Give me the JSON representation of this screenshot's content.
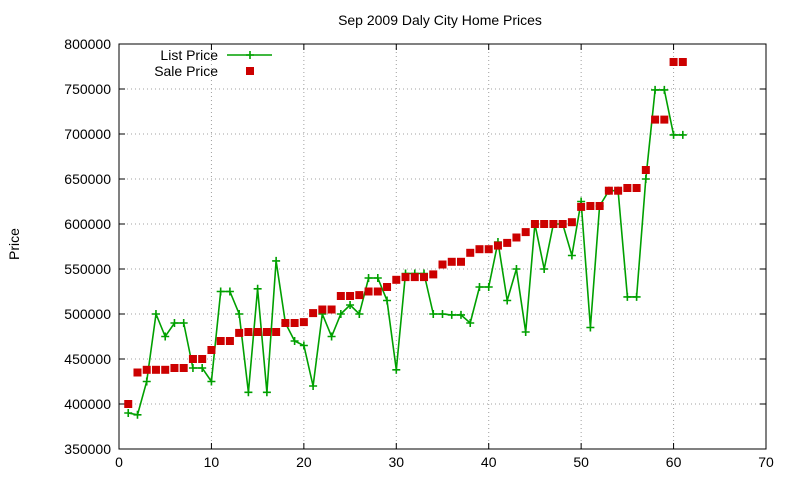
{
  "chart_data": {
    "type": "line",
    "title": "Sep 2009 Daly City Home Prices",
    "xlabel": "",
    "ylabel": "Price",
    "xlim": [
      0,
      70
    ],
    "ylim": [
      350000,
      800000
    ],
    "x_ticks": [
      0,
      10,
      20,
      30,
      40,
      50,
      60,
      70
    ],
    "y_ticks": [
      350000,
      400000,
      450000,
      500000,
      550000,
      600000,
      650000,
      700000,
      750000,
      800000
    ],
    "grid": true,
    "legend_position": "top-left",
    "series": [
      {
        "name": "List Price",
        "style": "line-with-plus-markers",
        "color": "#00a000",
        "x": [
          1,
          2,
          3,
          4,
          5,
          6,
          7,
          8,
          9,
          10,
          11,
          12,
          13,
          14,
          15,
          16,
          17,
          18,
          19,
          20,
          21,
          22,
          23,
          24,
          25,
          26,
          27,
          28,
          29,
          30,
          31,
          32,
          33,
          34,
          35,
          36,
          37,
          38,
          39,
          40,
          41,
          42,
          43,
          44,
          45,
          46,
          47,
          48,
          49,
          50,
          51,
          52,
          53,
          54,
          55,
          56,
          57,
          58,
          59,
          60,
          61
        ],
        "values": [
          390000,
          388000,
          425000,
          500000,
          475000,
          490000,
          490000,
          440000,
          440000,
          425000,
          525000,
          525000,
          500000,
          413000,
          528000,
          413000,
          559000,
          490000,
          470000,
          465000,
          420000,
          500000,
          475000,
          500000,
          510000,
          500000,
          540000,
          540000,
          515000,
          438000,
          545000,
          545000,
          545000,
          500000,
          500000,
          499000,
          499000,
          490000,
          530000,
          530000,
          580000,
          515000,
          550000,
          480000,
          600000,
          550000,
          600000,
          600000,
          565000,
          625000,
          485000,
          620000,
          637000,
          637000,
          519000,
          519000,
          650000,
          749000,
          749000,
          699000,
          699000
        ]
      },
      {
        "name": "Sale Price",
        "style": "square-markers",
        "color": "#cc0000",
        "x": [
          1,
          2,
          3,
          4,
          5,
          6,
          7,
          8,
          9,
          10,
          11,
          12,
          13,
          14,
          15,
          16,
          17,
          18,
          19,
          20,
          21,
          22,
          23,
          24,
          25,
          26,
          27,
          28,
          29,
          30,
          31,
          32,
          33,
          34,
          35,
          36,
          37,
          38,
          39,
          40,
          41,
          42,
          43,
          44,
          45,
          46,
          47,
          48,
          49,
          50,
          51,
          52,
          53,
          54,
          55,
          56,
          57,
          58,
          59,
          60,
          61
        ],
        "values": [
          400000,
          435000,
          438000,
          438000,
          438000,
          440000,
          440000,
          450000,
          450000,
          460000,
          470000,
          470000,
          479000,
          480000,
          480000,
          480000,
          480000,
          490000,
          490000,
          491000,
          501000,
          505000,
          505000,
          520000,
          520000,
          521000,
          525000,
          525000,
          530000,
          538000,
          541000,
          541000,
          541000,
          544000,
          555000,
          558000,
          558000,
          568000,
          572000,
          572000,
          576000,
          579000,
          585000,
          591000,
          600000,
          600000,
          600000,
          600000,
          602000,
          619000,
          620000,
          620000,
          637000,
          637000,
          640000,
          640000,
          660000,
          716000,
          716000,
          780000,
          780000
        ]
      }
    ]
  }
}
